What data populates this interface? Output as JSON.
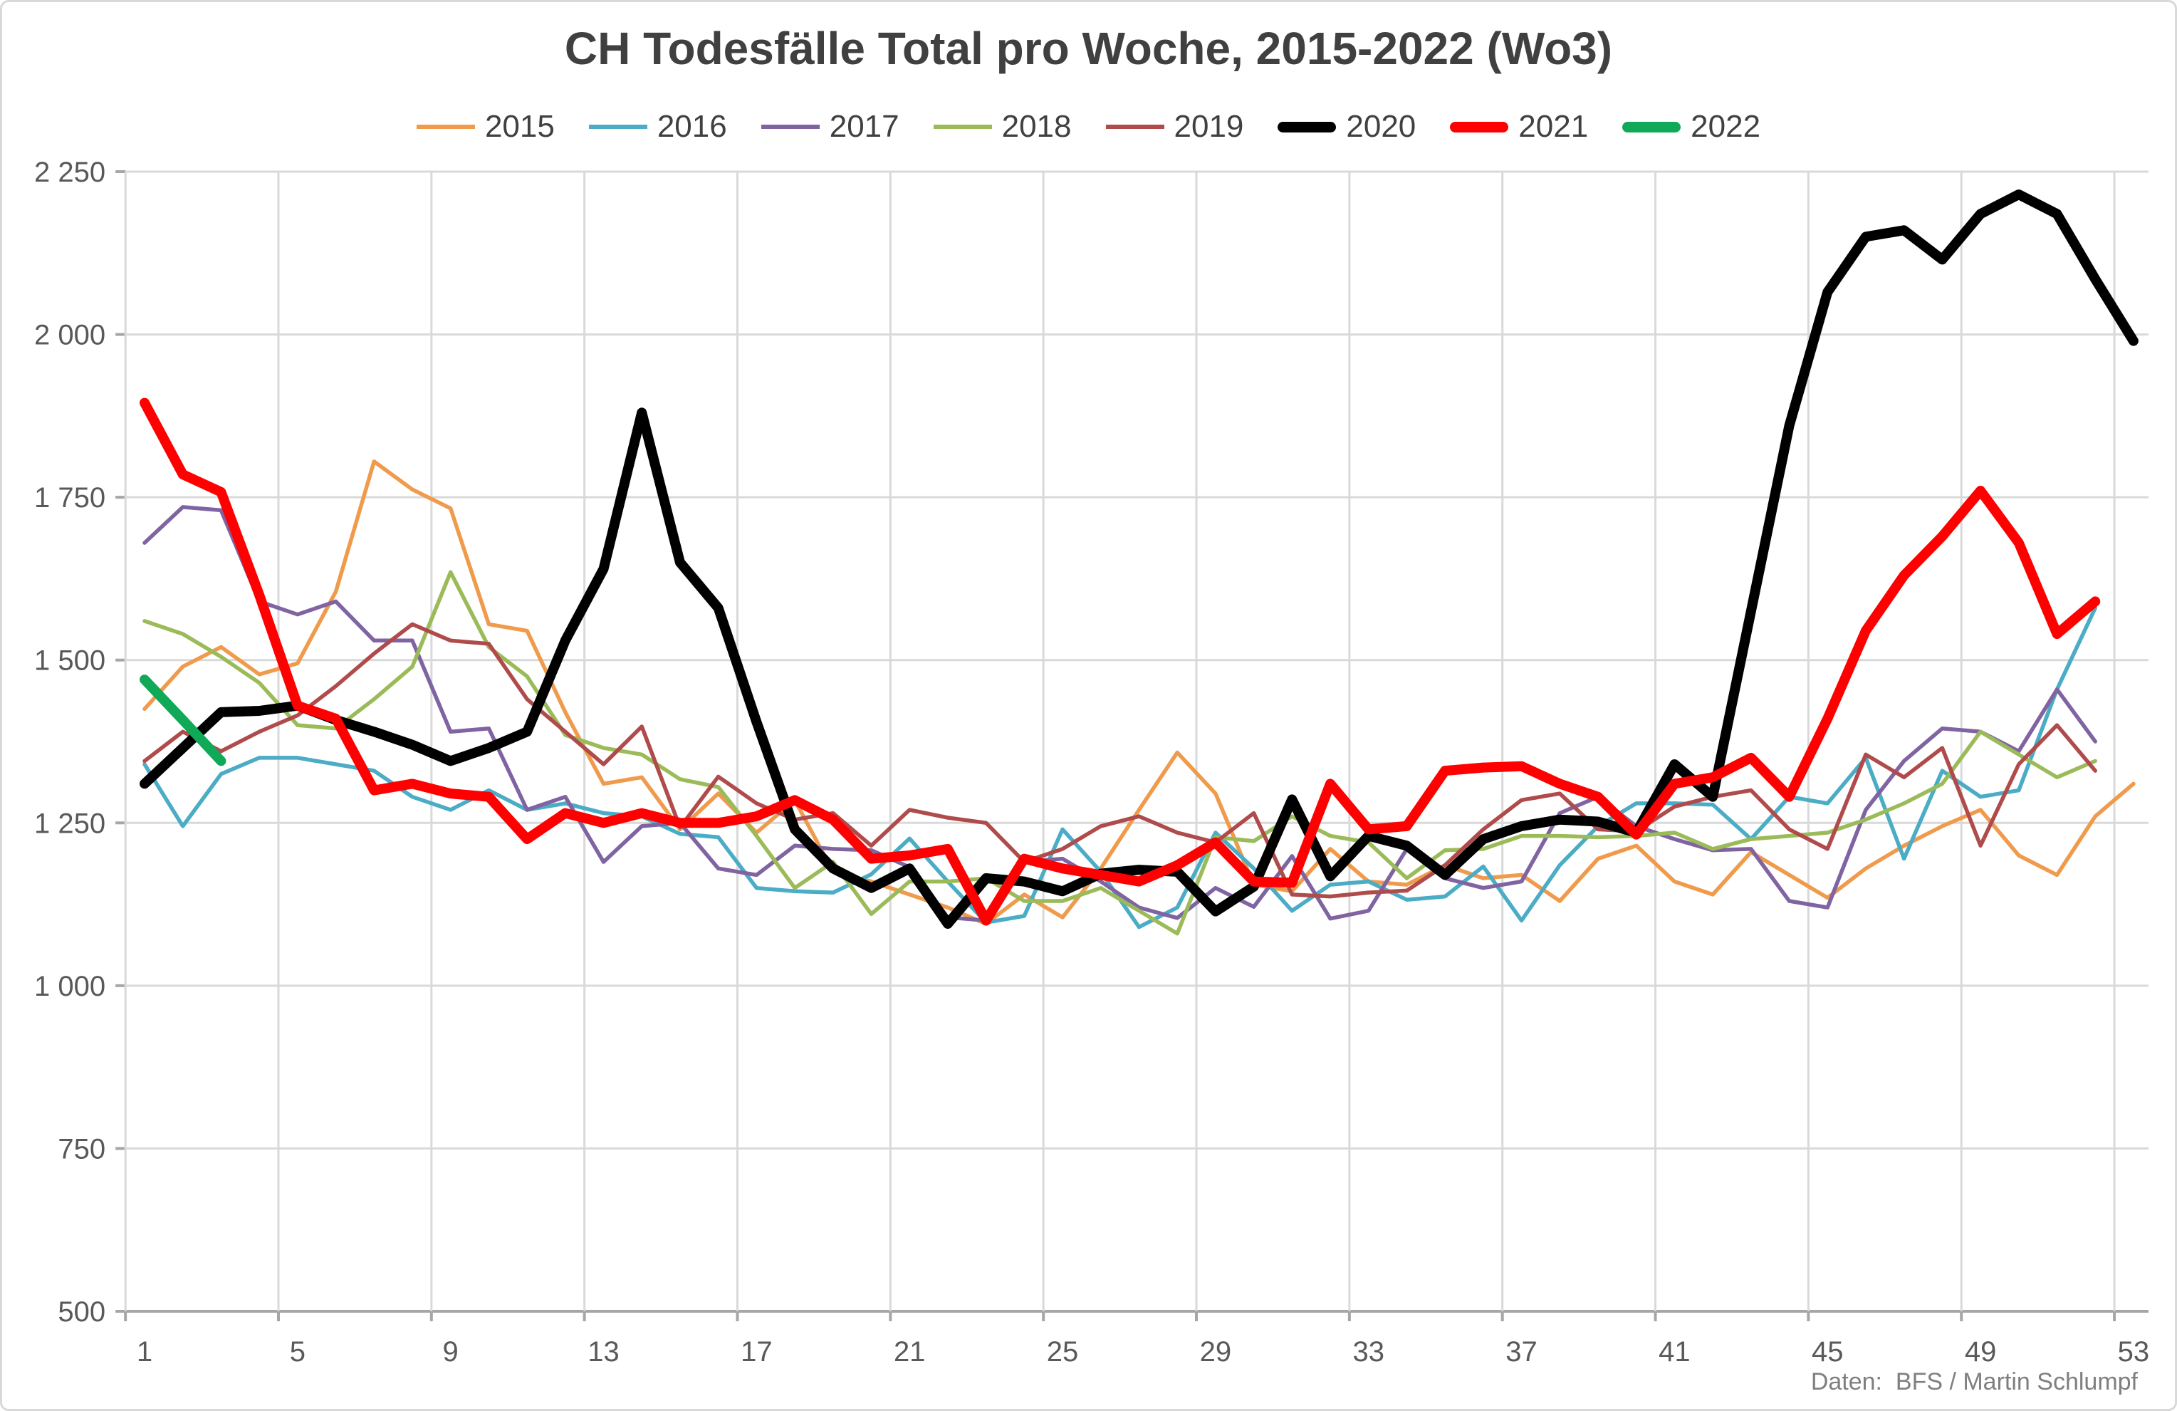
{
  "title": "CH Todesfälle Total pro Woche, 2015-2022 (Wo3)",
  "footer": "Daten:  BFS / Martin Schlumpf",
  "colors": {
    "grid": "#d9d9d9",
    "axis": "#a6a6a6",
    "tick_text": "#595959",
    "title_text": "#404040",
    "footer_text": "#7f7f7f"
  },
  "chart_data": {
    "type": "line",
    "title": "CH Todesfälle Total pro Woche, 2015-2022 (Wo3)",
    "xlabel": "",
    "ylabel": "",
    "ylim": [
      500,
      2250
    ],
    "y_tick_step": 250,
    "grid": true,
    "legend_position": "top",
    "y_ticks": [
      {
        "value": 2250,
        "label": "2 250"
      },
      {
        "value": 2000,
        "label": "2 000"
      },
      {
        "value": 1750,
        "label": "1 750"
      },
      {
        "value": 1500,
        "label": "1 500"
      },
      {
        "value": 1250,
        "label": "1 250"
      },
      {
        "value": 1000,
        "label": "1 000"
      },
      {
        "value": 750,
        "label": "750"
      },
      {
        "value": 500,
        "label": "500"
      }
    ],
    "x_ticks": [
      1,
      5,
      9,
      13,
      17,
      21,
      25,
      29,
      33,
      37,
      41,
      45,
      49,
      53
    ],
    "weeks_max": 53,
    "series": [
      {
        "name": "2015",
        "color": "#f09a4c",
        "thick": false,
        "values": [
          1425,
          1490,
          1520,
          1478,
          1495,
          1605,
          1805,
          1762,
          1733,
          1555,
          1545,
          1420,
          1310,
          1320,
          1240,
          1295,
          1235,
          1285,
          1175,
          1160,
          1140,
          1120,
          1095,
          1140,
          1105,
          1180,
          1270,
          1358,
          1295,
          1155,
          1145,
          1210,
          1160,
          1155,
          1185,
          1165,
          1170,
          1130,
          1195,
          1215,
          1160,
          1140,
          1205,
          1170,
          1135,
          1180,
          1215,
          1245,
          1270,
          1200,
          1170,
          1260,
          1310
        ]
      },
      {
        "name": "2016",
        "color": "#4bacc6",
        "thick": false,
        "values": [
          1340,
          1245,
          1325,
          1350,
          1350,
          1340,
          1330,
          1290,
          1270,
          1300,
          1270,
          1280,
          1265,
          1260,
          1233,
          1228,
          1150,
          1145,
          1143,
          1171,
          1226,
          1160,
          1097,
          1107,
          1240,
          1175,
          1090,
          1120,
          1235,
          1180,
          1115,
          1155,
          1160,
          1132,
          1137,
          1183,
          1100,
          1185,
          1245,
          1280,
          1280,
          1278,
          1225,
          1290,
          1280,
          1350,
          1195,
          1330,
          1290,
          1300,
          1455,
          1580
        ]
      },
      {
        "name": "2017",
        "color": "#8064a2",
        "thick": false,
        "values": [
          1680,
          1735,
          1730,
          1590,
          1570,
          1590,
          1530,
          1530,
          1390,
          1395,
          1270,
          1290,
          1190,
          1245,
          1250,
          1180,
          1170,
          1215,
          1210,
          1208,
          1182,
          1105,
          1100,
          1190,
          1195,
          1160,
          1120,
          1104,
          1150,
          1121,
          1199,
          1103,
          1115,
          1210,
          1165,
          1150,
          1160,
          1265,
          1290,
          1245,
          1225,
          1208,
          1210,
          1130,
          1120,
          1270,
          1345,
          1395,
          1390,
          1360,
          1455,
          1375
        ]
      },
      {
        "name": "2018",
        "color": "#9bbb59",
        "thick": false,
        "values": [
          1560,
          1540,
          1505,
          1465,
          1400,
          1395,
          1440,
          1490,
          1635,
          1520,
          1475,
          1385,
          1365,
          1355,
          1317,
          1305,
          1230,
          1150,
          1190,
          1110,
          1160,
          1160,
          1165,
          1130,
          1130,
          1150,
          1115,
          1080,
          1228,
          1222,
          1260,
          1230,
          1220,
          1165,
          1208,
          1210,
          1230,
          1230,
          1228,
          1230,
          1235,
          1210,
          1225,
          1230,
          1235,
          1255,
          1280,
          1310,
          1390,
          1355,
          1320,
          1345
        ]
      },
      {
        "name": "2019",
        "color": "#b04b4c",
        "thick": false,
        "values": [
          1345,
          1390,
          1360,
          1390,
          1415,
          1460,
          1510,
          1555,
          1530,
          1525,
          1440,
          1390,
          1340,
          1398,
          1243,
          1321,
          1280,
          1255,
          1265,
          1215,
          1270,
          1258,
          1250,
          1190,
          1210,
          1245,
          1260,
          1235,
          1220,
          1265,
          1140,
          1137,
          1143,
          1146,
          1185,
          1240,
          1285,
          1295,
          1240,
          1237,
          1275,
          1290,
          1300,
          1240,
          1210,
          1355,
          1320,
          1365,
          1215,
          1340,
          1400,
          1330
        ]
      },
      {
        "name": "2020",
        "color": "#000000",
        "thick": true,
        "values": [
          1310,
          1365,
          1420,
          1422,
          1430,
          1408,
          1390,
          1370,
          1345,
          1365,
          1390,
          1530,
          1640,
          1880,
          1650,
          1580,
          1405,
          1240,
          1180,
          1150,
          1180,
          1095,
          1165,
          1160,
          1145,
          1172,
          1178,
          1175,
          1114,
          1152,
          1286,
          1168,
          1230,
          1215,
          1170,
          1225,
          1245,
          1255,
          1252,
          1235,
          1340,
          1290,
          1575,
          1860,
          2065,
          2150,
          2160,
          2115,
          2185,
          2215,
          2185,
          2085,
          1990
        ]
      },
      {
        "name": "2021",
        "color": "#ff0000",
        "thick": true,
        "values": [
          1895,
          1785,
          1758,
          1600,
          1430,
          1410,
          1300,
          1310,
          1295,
          1290,
          1225,
          1265,
          1250,
          1265,
          1250,
          1250,
          1260,
          1285,
          1255,
          1195,
          1200,
          1210,
          1100,
          1195,
          1180,
          1170,
          1160,
          1185,
          1220,
          1160,
          1158,
          1310,
          1240,
          1245,
          1330,
          1335,
          1337,
          1310,
          1290,
          1232,
          1310,
          1320,
          1350,
          1290,
          1410,
          1545,
          1630,
          1690,
          1760,
          1680,
          1540,
          1590
        ]
      },
      {
        "name": "2022",
        "color": "#10a958",
        "thick": true,
        "values": [
          1470,
          1408,
          1345
        ]
      }
    ]
  }
}
